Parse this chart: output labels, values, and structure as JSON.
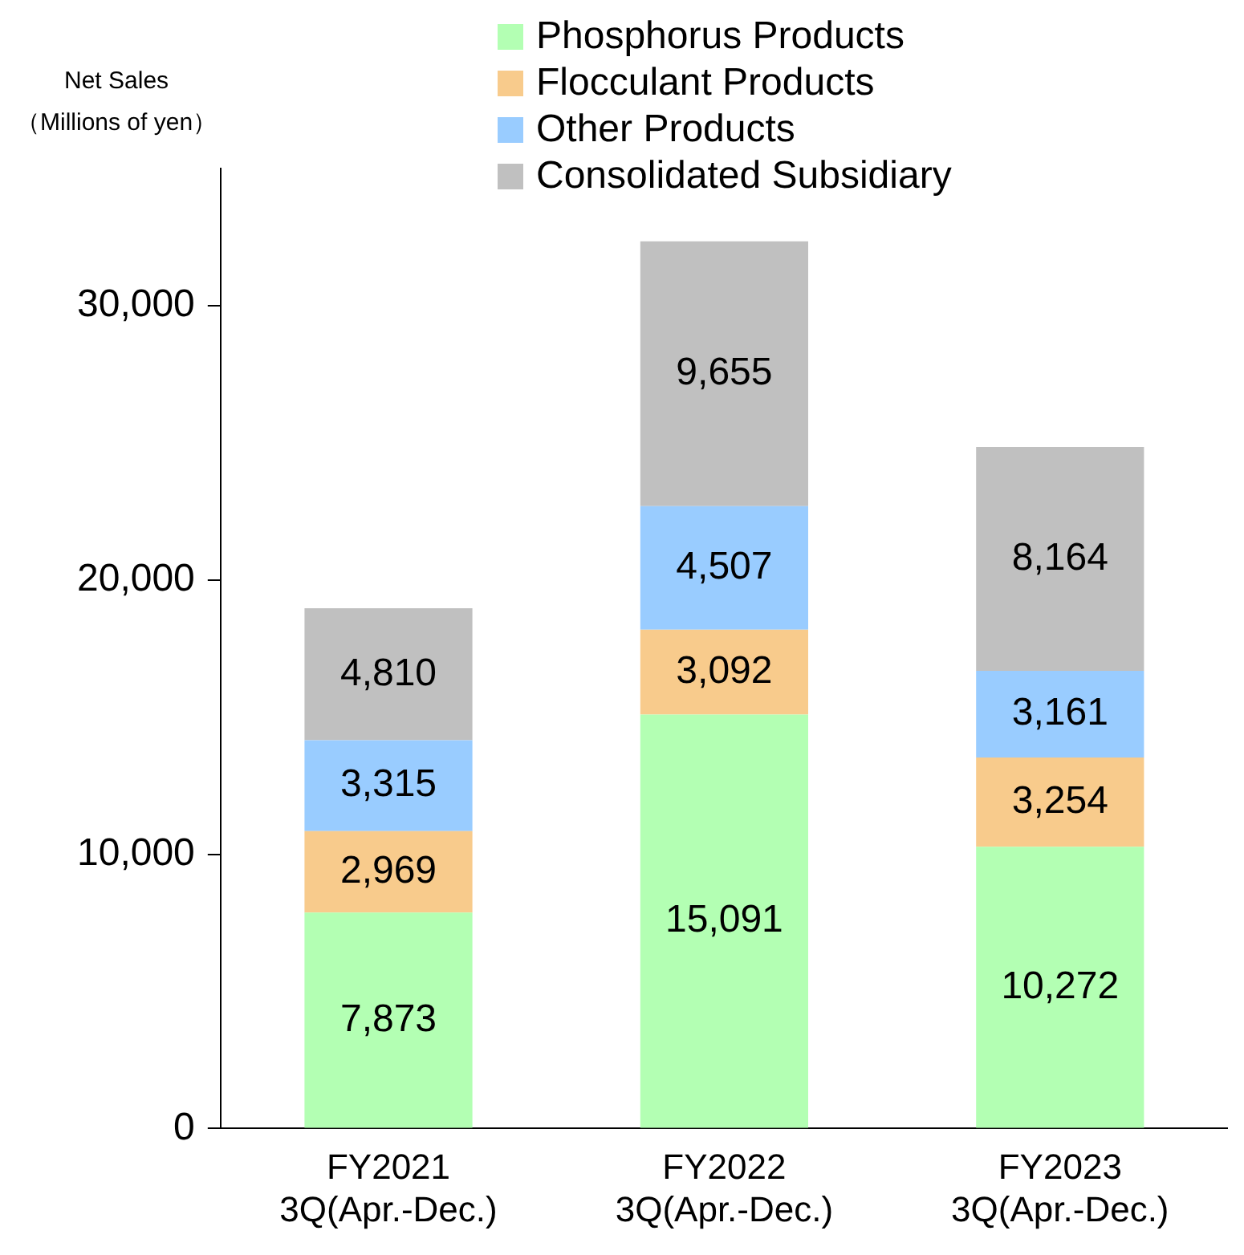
{
  "chart_data": {
    "type": "bar",
    "stacked": true,
    "ylabel": "Net Sales\n（Millions of yen）",
    "categories": [
      "FY2021\n3Q(Apr.-Dec.)",
      "FY2022\n3Q(Apr.-Dec.)",
      "FY2023\n3Q(Apr.-Dec.)"
    ],
    "series": [
      {
        "name": "Phosphorus Products",
        "color": "#b3ffb3",
        "values": [
          7873,
          15091,
          10272
        ],
        "value_labels": [
          "7,873",
          "15,091",
          "10,272"
        ]
      },
      {
        "name": "Flocculant Products",
        "color": "#f8cb8c",
        "values": [
          2969,
          3092,
          3254
        ],
        "value_labels": [
          "2,969",
          "3,092",
          "3,254"
        ]
      },
      {
        "name": "Other Products",
        "color": "#99ccff",
        "values": [
          3315,
          4507,
          3161
        ],
        "value_labels": [
          "3,315",
          "4,507",
          "3,161"
        ]
      },
      {
        "name": "Consolidated Subsidiary",
        "color": "#c0c0c0",
        "values": [
          4810,
          9655,
          8164
        ],
        "value_labels": [
          "4,810",
          "9,655",
          "8,164"
        ]
      }
    ],
    "ylim": [
      0,
      35000
    ],
    "yticks": [
      {
        "value": 0,
        "label": "0"
      },
      {
        "value": 10000,
        "label": "10,000"
      },
      {
        "value": 20000,
        "label": "20,000"
      },
      {
        "value": 30000,
        "label": "30,000"
      }
    ],
    "legend": "top",
    "grid": false
  }
}
